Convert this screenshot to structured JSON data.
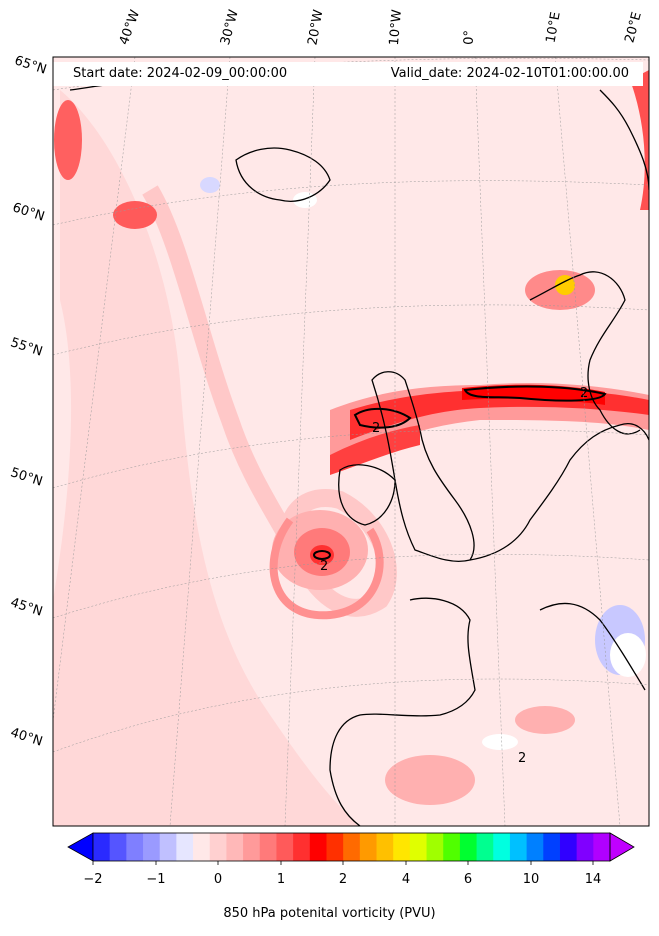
{
  "header": {
    "start_label": "Start date: 2024-02-09_00:00:00",
    "valid_label": "Valid_date: 2024-02-10T01:00:00.00"
  },
  "lon_labels": [
    "40°W",
    "30°W",
    "20°W",
    "10°W",
    "0°",
    "10°E",
    "20°E"
  ],
  "lat_labels": [
    "65°N",
    "60°N",
    "55°N",
    "50°N",
    "45°N",
    "40°N"
  ],
  "contour_label": "2",
  "colorbar": {
    "ticks": [
      "−2",
      "−1",
      "0",
      "1",
      "2",
      "4",
      "6",
      "10",
      "14"
    ],
    "title": "850 hPa potenital vorticity (PVU)",
    "colors": [
      "#0000ff",
      "#2a2aff",
      "#5555ff",
      "#7f7fff",
      "#9a9aff",
      "#c0c0ff",
      "#e6e6ff",
      "#ffe8e8",
      "#ffd0d0",
      "#ffb8b8",
      "#ff9a9a",
      "#ff7a7a",
      "#ff5a5a",
      "#ff3030",
      "#ff0000",
      "#ff3000",
      "#ff6a00",
      "#ff9a00",
      "#ffc000",
      "#ffe600",
      "#e0ff00",
      "#a0ff00",
      "#50ff00",
      "#00ff30",
      "#00ff90",
      "#00ffe0",
      "#00c0ff",
      "#0080ff",
      "#0040ff",
      "#3000ff",
      "#8000ff",
      "#b000ff",
      "#c000ff"
    ]
  }
}
